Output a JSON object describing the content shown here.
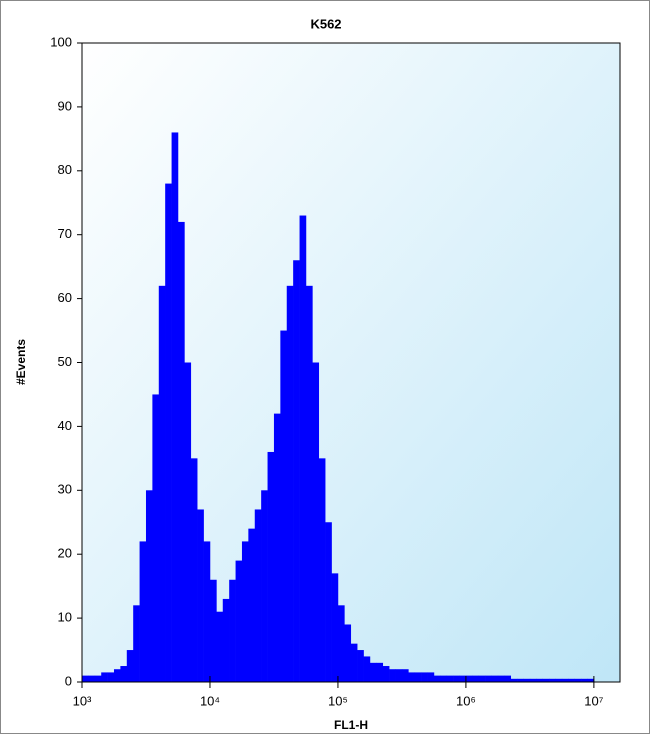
{
  "chart_data": {
    "type": "histogram",
    "title": "K562",
    "xlabel": "FL1-H",
    "ylabel": "#Events",
    "xscale": "log",
    "color": "#0000ff",
    "xlim": [
      1000,
      16000000
    ],
    "ylim": [
      0,
      100
    ],
    "xticks": [
      {
        "value": 1000,
        "label": "10³"
      },
      {
        "value": 10000,
        "label": "10⁴"
      },
      {
        "value": 100000,
        "label": "10⁵"
      },
      {
        "value": 1000000,
        "label": "10⁶"
      },
      {
        "value": 10000000,
        "label": "10⁷"
      }
    ],
    "yticks": [
      0,
      10,
      20,
      30,
      40,
      50,
      60,
      70,
      80,
      90,
      100
    ],
    "bins": [
      1000,
      1122,
      1259,
      1413,
      1585,
      1778,
      1995,
      2239,
      2512,
      2818,
      3162,
      3548,
      3981,
      4467,
      5012,
      5623,
      6310,
      7079,
      7943,
      8913,
      10000,
      11220,
      12590,
      14130,
      15850,
      17780,
      19950,
      22390,
      25120,
      28180,
      31620,
      35480,
      39810,
      44670,
      50120,
      56230,
      63100,
      70790,
      79430,
      89130,
      100000,
      112200,
      125900,
      141300,
      158500,
      177800,
      199500,
      223900,
      251200,
      281800,
      316200,
      354800,
      398100,
      446700,
      501200,
      562300,
      631000,
      707900,
      794300,
      891300,
      1000000,
      1122000,
      1259000,
      1413000,
      1585000,
      1778000,
      1995000,
      2239000,
      2512000,
      2818000,
      3162000,
      3548000,
      3981000,
      4467000,
      5012000,
      5623000,
      6310000,
      7079000,
      7943000,
      8913000,
      10000000
    ],
    "counts": [
      1,
      1,
      1,
      1.5,
      1.5,
      2,
      2.5,
      5,
      12,
      22,
      30,
      45,
      62,
      78,
      86,
      72,
      50,
      35,
      27,
      22,
      16,
      11,
      13,
      16,
      19,
      22,
      24,
      27,
      30,
      36,
      42,
      55,
      62,
      66,
      73,
      62,
      50,
      35,
      25,
      17,
      12,
      9,
      6,
      5,
      4,
      3,
      3,
      2.5,
      2,
      2,
      2,
      1.5,
      1.5,
      1.5,
      1.5,
      1,
      1,
      1,
      1,
      1,
      1,
      1,
      1,
      1,
      1,
      1,
      1,
      0.5,
      0.5,
      0.5,
      0.5,
      0.5,
      0.5,
      0.5,
      0.5,
      0.5,
      0.5,
      0.5,
      0.5,
      0.5
    ]
  }
}
